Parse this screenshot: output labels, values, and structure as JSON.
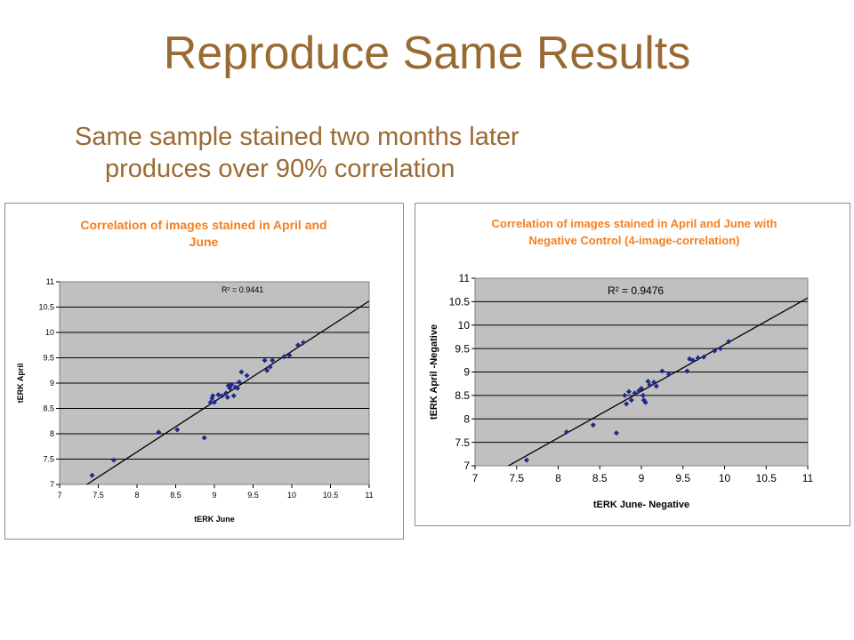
{
  "slide": {
    "title": "Reproduce Same Results",
    "subtitle_line1": "Same sample stained two months later",
    "subtitle_line2": "produces over 90% correlation"
  },
  "colors": {
    "title": "#9a6a33",
    "chart_title": "#f47f1f",
    "plot_bg": "#c0c0c0",
    "point": "#1f2a8c"
  },
  "chart_data": [
    {
      "type": "scatter",
      "title_lines": [
        "Correlation of images stained in April and",
        "June"
      ],
      "xlabel": "tERK June",
      "ylabel": "tERK April",
      "xlim": [
        7,
        11
      ],
      "ylim": [
        7,
        11
      ],
      "xticks": [
        "7",
        "7.5",
        "8",
        "8.5",
        "9",
        "9.5",
        "10",
        "10.5",
        "11"
      ],
      "yticks": [
        "7",
        "7.5",
        "8",
        "8.5",
        "9",
        "9.5",
        "10",
        "10.5",
        "11"
      ],
      "annotation": "R² = 0.9441",
      "trendline": [
        [
          7.0,
          6.65
        ],
        [
          11.0,
          10.62
        ]
      ],
      "grid": "horizontal",
      "x": [
        7.42,
        7.7,
        8.28,
        8.52,
        8.87,
        8.95,
        8.97,
        8.98,
        9.0,
        9.05,
        9.1,
        9.15,
        9.17,
        9.18,
        9.2,
        9.22,
        9.25,
        9.27,
        9.3,
        9.32,
        9.35,
        9.42,
        9.65,
        9.68,
        9.72,
        9.75,
        9.9,
        9.97,
        10.08,
        10.15
      ],
      "y": [
        7.18,
        7.48,
        8.03,
        8.08,
        7.92,
        8.62,
        8.7,
        8.75,
        8.62,
        8.77,
        8.75,
        8.8,
        8.72,
        8.95,
        8.9,
        8.97,
        8.75,
        8.92,
        8.9,
        9.02,
        9.22,
        9.15,
        9.45,
        9.25,
        9.32,
        9.45,
        9.52,
        9.55,
        9.75,
        9.8
      ]
    },
    {
      "type": "scatter",
      "title_lines": [
        "Correlation of images stained in April and June with",
        "Negative Control (4-image-correlation)"
      ],
      "xlabel": "tERK June- Negative",
      "ylabel": "tERK April -Negative",
      "xlim": [
        7,
        11
      ],
      "ylim": [
        7,
        11
      ],
      "xticks": [
        "7",
        "7.5",
        "8",
        "8.5",
        "9",
        "9.5",
        "10",
        "10.5",
        "11"
      ],
      "yticks": [
        "7",
        "7.5",
        "8",
        "8.5",
        "9",
        "9.5",
        "10",
        "10.5",
        "11"
      ],
      "annotation": "R² = 0.9476",
      "trendline": [
        [
          7.0,
          6.6
        ],
        [
          11.0,
          10.58
        ]
      ],
      "grid": "horizontal",
      "x": [
        7.62,
        8.1,
        8.42,
        8.7,
        8.8,
        8.82,
        8.85,
        8.88,
        8.92,
        8.97,
        9.0,
        9.02,
        9.03,
        9.05,
        9.08,
        9.1,
        9.15,
        9.18,
        9.25,
        9.33,
        9.55,
        9.58,
        9.62,
        9.68,
        9.75,
        9.88,
        9.95,
        10.05
      ],
      "y": [
        7.12,
        7.72,
        7.87,
        7.7,
        8.5,
        8.32,
        8.58,
        8.4,
        8.55,
        8.6,
        8.65,
        8.5,
        8.4,
        8.35,
        8.8,
        8.72,
        8.78,
        8.7,
        9.02,
        8.95,
        9.02,
        9.28,
        9.25,
        9.3,
        9.32,
        9.45,
        9.5,
        9.65
      ]
    }
  ]
}
